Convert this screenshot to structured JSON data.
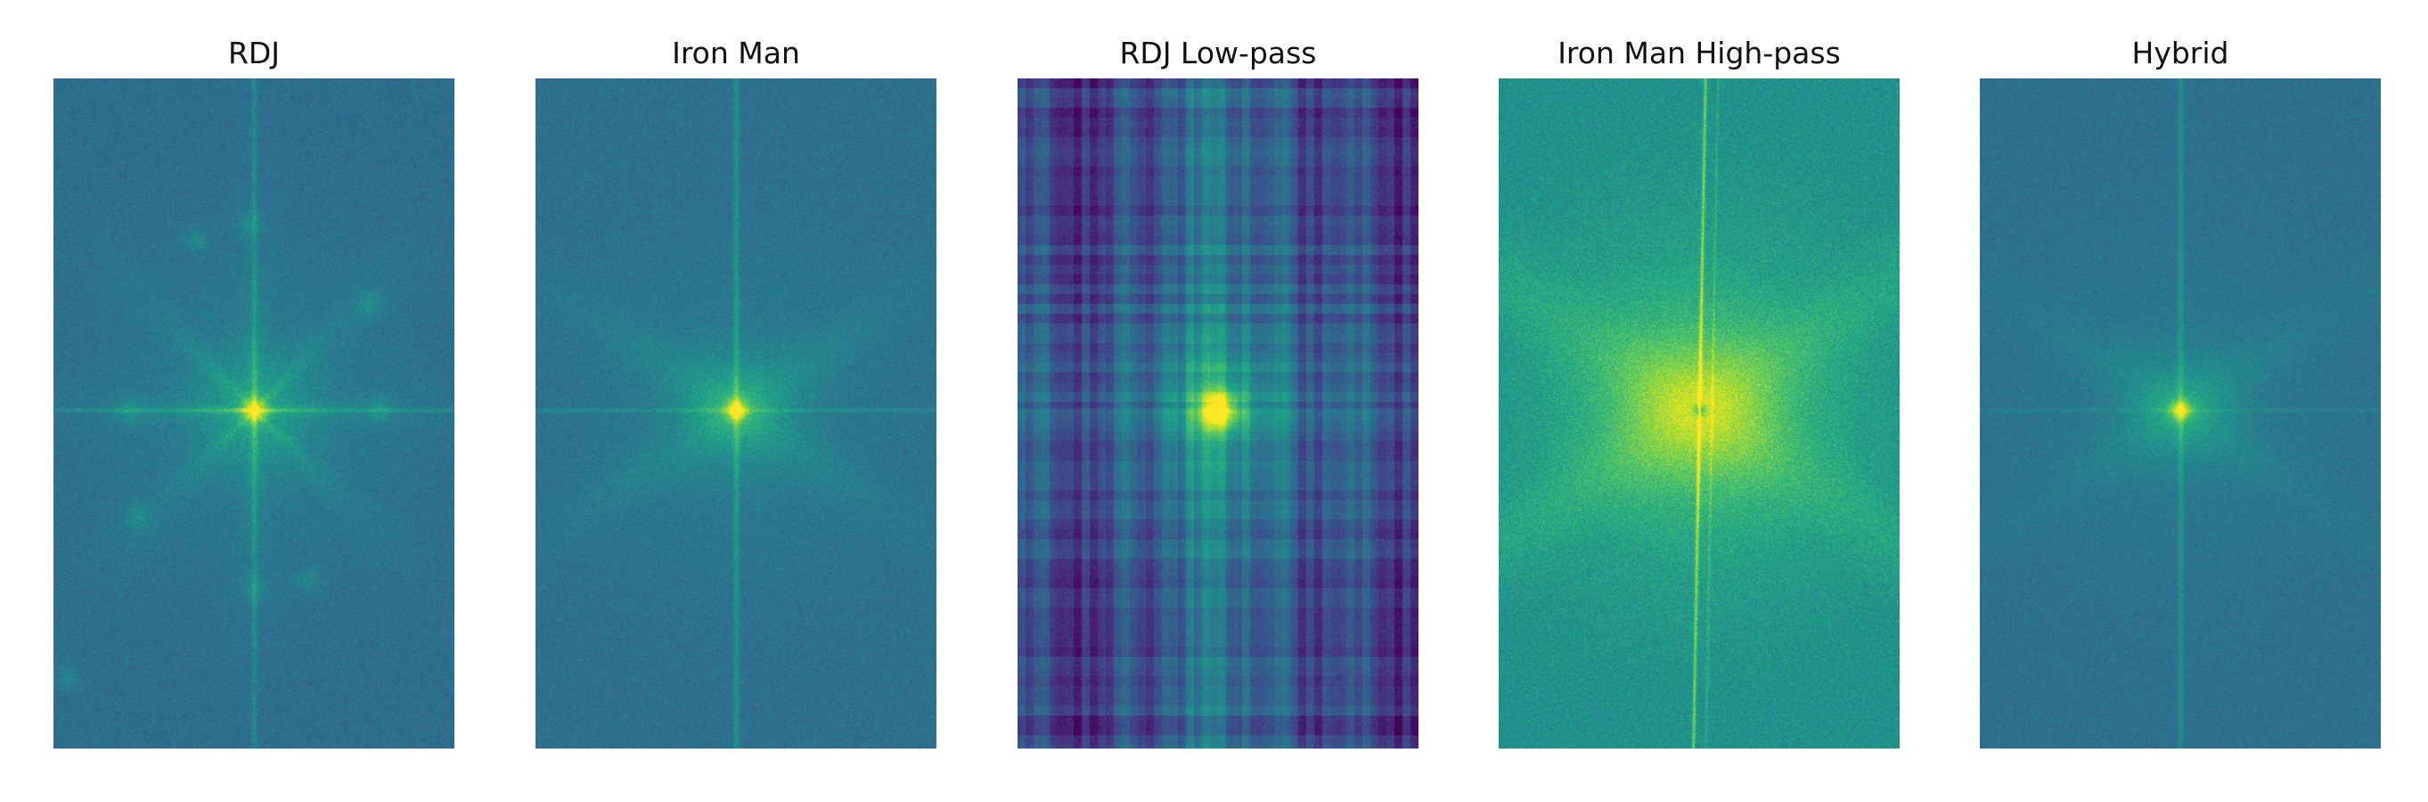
{
  "figure": {
    "panels": [
      {
        "title": "RDJ",
        "kind": "rdj"
      },
      {
        "title": "Iron Man",
        "kind": "ironman"
      },
      {
        "title": "RDJ Low-pass",
        "kind": "lowpass"
      },
      {
        "title": "Iron Man High-pass",
        "kind": "highpass"
      },
      {
        "title": "Hybrid",
        "kind": "hybrid"
      }
    ]
  },
  "colormap": {
    "name": "viridis",
    "stops": [
      "#440154",
      "#482878",
      "#3e4989",
      "#31688e",
      "#26828e",
      "#1f9e89",
      "#35b779",
      "#6ece58",
      "#b5de2b",
      "#fde725"
    ]
  }
}
